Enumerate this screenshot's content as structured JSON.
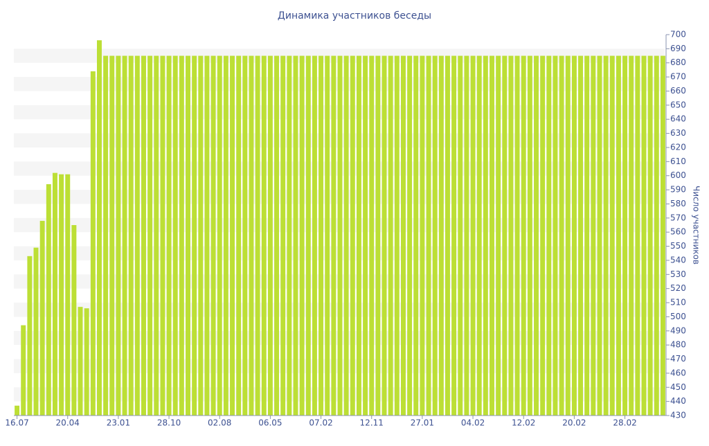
{
  "chart_data": {
    "type": "bar",
    "title": "Динамика участников беседы",
    "y_label": "Число участников",
    "categories": [
      "16.07",
      null,
      null,
      null,
      null,
      null,
      null,
      null,
      "20.04",
      null,
      null,
      null,
      null,
      null,
      null,
      null,
      "23.01",
      null,
      null,
      null,
      null,
      null,
      null,
      null,
      "28.10",
      null,
      null,
      null,
      null,
      null,
      null,
      null,
      "02.08",
      null,
      null,
      null,
      null,
      null,
      null,
      null,
      "06.05",
      null,
      null,
      null,
      null,
      null,
      null,
      null,
      "07.02",
      null,
      null,
      null,
      null,
      null,
      null,
      null,
      "12.11",
      null,
      null,
      null,
      null,
      null,
      null,
      null,
      "27.01",
      null,
      null,
      null,
      null,
      null,
      null,
      null,
      "04.02",
      null,
      null,
      null,
      null,
      null,
      null,
      null,
      "12.02",
      null,
      null,
      null,
      null,
      null,
      null,
      null,
      "20.02",
      null,
      null,
      null,
      null,
      null,
      null,
      null,
      "28.02",
      null,
      null,
      null,
      null,
      null,
      null
    ],
    "values": [
      437,
      494,
      543,
      549,
      568,
      594,
      602,
      601,
      601,
      565,
      507,
      506,
      674,
      696,
      685,
      685,
      685,
      685,
      685,
      685,
      685,
      685,
      685,
      685,
      685,
      685,
      685,
      685,
      685,
      685,
      685,
      685,
      685,
      685,
      685,
      685,
      685,
      685,
      685,
      685,
      685,
      685,
      685,
      685,
      685,
      685,
      685,
      685,
      685,
      685,
      685,
      685,
      685,
      685,
      685,
      685,
      685,
      685,
      685,
      685,
      685,
      685,
      685,
      685,
      685,
      685,
      685,
      685,
      685,
      685,
      685,
      685,
      685,
      685,
      685,
      685,
      685,
      685,
      685,
      685,
      685,
      685,
      685,
      685,
      685,
      685,
      685,
      685,
      685,
      685,
      685,
      685,
      685,
      685,
      685,
      685,
      685,
      685,
      685,
      685,
      685,
      685,
      685
    ],
    "color": "#bcdf35",
    "ylim": [
      430,
      700
    ],
    "yticks": [
      430,
      440,
      450,
      460,
      470,
      480,
      490,
      500,
      510,
      520,
      530,
      540,
      550,
      560,
      570,
      580,
      590,
      600,
      610,
      620,
      630,
      640,
      650,
      660,
      670,
      680,
      690,
      700
    ],
    "grid": true
  }
}
